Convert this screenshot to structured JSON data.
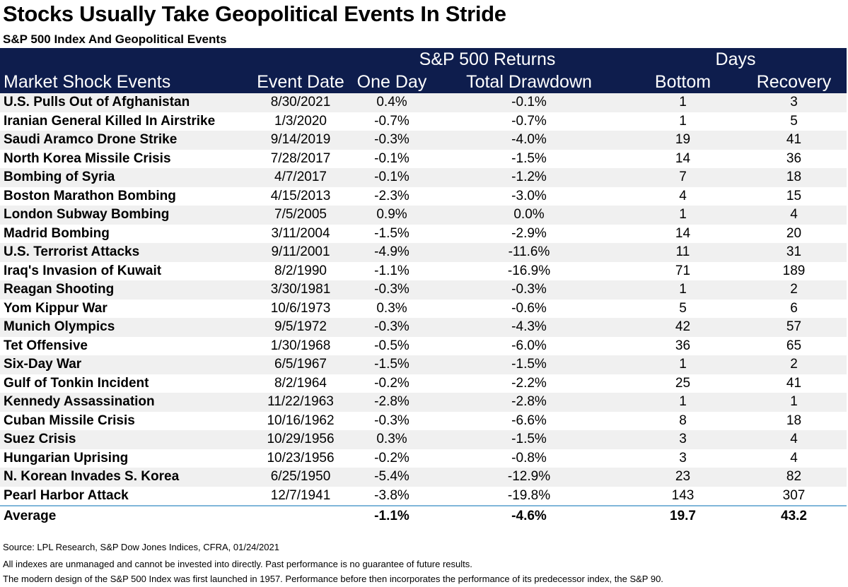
{
  "title": "Stocks Usually Take Geopolitical Events In Stride",
  "subtitle": "S&P 500 Index And Geopolitical Events",
  "colors": {
    "header_bg": "#0e1d4d",
    "stripe": "#f0f0f0",
    "rule": "#7fb6d9"
  },
  "chart_data": {
    "type": "table",
    "group_headers": [
      "S&P 500 Returns",
      "Days"
    ],
    "columns": [
      "Market Shock Events",
      "Event Date",
      "One Day",
      "Total Drawdown",
      "Bottom",
      "Recovery"
    ],
    "rows": [
      [
        "U.S. Pulls Out of Afghanistan",
        "8/30/2021",
        "0.4%",
        "-0.1%",
        "1",
        "3"
      ],
      [
        "Iranian General Killed In Airstrike",
        "1/3/2020",
        "-0.7%",
        "-0.7%",
        "1",
        "5"
      ],
      [
        "Saudi Aramco Drone Strike",
        "9/14/2019",
        "-0.3%",
        "-4.0%",
        "19",
        "41"
      ],
      [
        "North Korea Missile Crisis",
        "7/28/2017",
        "-0.1%",
        "-1.5%",
        "14",
        "36"
      ],
      [
        "Bombing of Syria",
        "4/7/2017",
        "-0.1%",
        "-1.2%",
        "7",
        "18"
      ],
      [
        "Boston Marathon Bombing",
        "4/15/2013",
        "-2.3%",
        "-3.0%",
        "4",
        "15"
      ],
      [
        "London Subway Bombing",
        "7/5/2005",
        "0.9%",
        "0.0%",
        "1",
        "4"
      ],
      [
        "Madrid Bombing",
        "3/11/2004",
        "-1.5%",
        "-2.9%",
        "14",
        "20"
      ],
      [
        "U.S. Terrorist Attacks",
        "9/11/2001",
        "-4.9%",
        "-11.6%",
        "11",
        "31"
      ],
      [
        "Iraq's Invasion of Kuwait",
        "8/2/1990",
        "-1.1%",
        "-16.9%",
        "71",
        "189"
      ],
      [
        "Reagan Shooting",
        "3/30/1981",
        "-0.3%",
        "-0.3%",
        "1",
        "2"
      ],
      [
        "Yom Kippur War",
        "10/6/1973",
        "0.3%",
        "-0.6%",
        "5",
        "6"
      ],
      [
        "Munich Olympics",
        "9/5/1972",
        "-0.3%",
        "-4.3%",
        "42",
        "57"
      ],
      [
        "Tet Offensive",
        "1/30/1968",
        "-0.5%",
        "-6.0%",
        "36",
        "65"
      ],
      [
        "Six-Day War",
        "6/5/1967",
        "-1.5%",
        "-1.5%",
        "1",
        "2"
      ],
      [
        "Gulf of Tonkin Incident",
        "8/2/1964",
        "-0.2%",
        "-2.2%",
        "25",
        "41"
      ],
      [
        "Kennedy Assassination",
        "11/22/1963",
        "-2.8%",
        "-2.8%",
        "1",
        "1"
      ],
      [
        "Cuban Missile Crisis",
        "10/16/1962",
        "-0.3%",
        "-6.6%",
        "8",
        "18"
      ],
      [
        "Suez Crisis",
        "10/29/1956",
        "0.3%",
        "-1.5%",
        "3",
        "4"
      ],
      [
        "Hungarian Uprising",
        "10/23/1956",
        "-0.2%",
        "-0.8%",
        "3",
        "4"
      ],
      [
        "N. Korean Invades S. Korea",
        "6/25/1950",
        "-5.4%",
        "-12.9%",
        "23",
        "82"
      ],
      [
        "Pearl Harbor Attack",
        "12/7/1941",
        "-3.8%",
        "-19.8%",
        "143",
        "307"
      ]
    ],
    "average": [
      "Average",
      "",
      "-1.1%",
      "-4.6%",
      "19.7",
      "43.2"
    ]
  },
  "footer": {
    "source": "Source: LPL Research, S&P Dow Jones Indices, CFRA, 01/24/2021",
    "disclaimer": "All indexes are unmanaged and cannot be invested into directly.  Past performance is no guarantee of future results.",
    "note": "The modern design of the S&P 500 Index was first launched in 1957. Performance before then incorporates the performance of its predecessor index, the S&P 90."
  }
}
